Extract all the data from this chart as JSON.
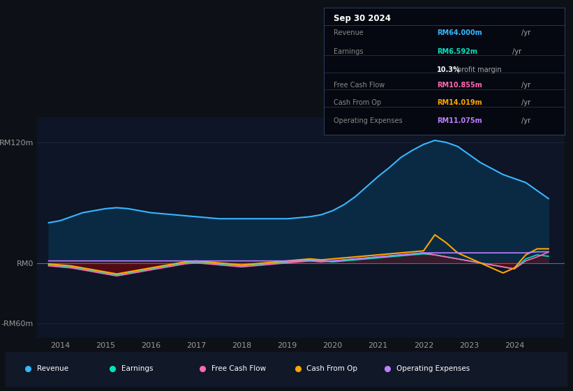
{
  "background_color": "#0d1117",
  "plot_bg_color": "#0d1526",
  "title": "Sep 30 2024",
  "ylim": [
    -75,
    145
  ],
  "ytick_positions": [
    -60,
    0,
    120
  ],
  "ytick_labels": [
    "-RM60m",
    "RM0",
    "RM120m"
  ],
  "xlim": [
    2013.5,
    2025.1
  ],
  "xtick_years": [
    2014,
    2015,
    2016,
    2017,
    2018,
    2019,
    2020,
    2021,
    2022,
    2023,
    2024
  ],
  "revenue_color": "#38b6ff",
  "revenue_fill_color": "#0a2a44",
  "earnings_color": "#00e5c0",
  "earnings_fill_above_color": "#4a1a2a",
  "earnings_fill_below_color": "#5a1010",
  "fcf_color": "#ff69b4",
  "cashfromop_color": "#ffa500",
  "opex_color": "#bf7fff",
  "legend_bg": "#111827",
  "info_bg": "#050810",
  "info_border": "#2a3a5a",
  "revenue_label": "RM64.000m",
  "earnings_label": "RM6.592m",
  "profit_margin": "10.3%",
  "fcf_label": "RM10.855m",
  "cashfromop_label": "RM14.019m",
  "opex_label": "RM11.075m",
  "years": [
    2013.75,
    2014.0,
    2014.25,
    2014.5,
    2014.75,
    2015.0,
    2015.25,
    2015.5,
    2015.75,
    2016.0,
    2016.25,
    2016.5,
    2016.75,
    2017.0,
    2017.25,
    2017.5,
    2017.75,
    2018.0,
    2018.25,
    2018.5,
    2018.75,
    2019.0,
    2019.25,
    2019.5,
    2019.75,
    2020.0,
    2020.25,
    2020.5,
    2020.75,
    2021.0,
    2021.25,
    2021.5,
    2021.75,
    2022.0,
    2022.25,
    2022.5,
    2022.75,
    2023.0,
    2023.25,
    2023.5,
    2023.75,
    2024.0,
    2024.25,
    2024.5,
    2024.75
  ],
  "revenue": [
    40,
    42,
    46,
    50,
    52,
    54,
    55,
    54,
    52,
    50,
    49,
    48,
    47,
    46,
    45,
    44,
    44,
    44,
    44,
    44,
    44,
    44,
    45,
    46,
    48,
    52,
    58,
    66,
    76,
    86,
    95,
    105,
    112,
    118,
    122,
    120,
    116,
    108,
    100,
    94,
    88,
    84,
    80,
    72,
    64
  ],
  "earnings": [
    -2,
    -3,
    -4,
    -6,
    -8,
    -10,
    -12,
    -10,
    -8,
    -6,
    -4,
    -2,
    0,
    1,
    0,
    -1,
    -2,
    -3,
    -2,
    -1,
    0,
    1,
    2,
    3,
    2,
    1,
    2,
    3,
    4,
    5,
    6,
    7,
    8,
    9,
    8,
    6,
    4,
    2,
    0,
    -2,
    -4,
    -6,
    4,
    8,
    6.592
  ],
  "fcf": [
    -3,
    -4,
    -5,
    -7,
    -9,
    -11,
    -13,
    -11,
    -9,
    -7,
    -5,
    -3,
    -1,
    0,
    -1,
    -2,
    -3,
    -4,
    -3,
    -2,
    -1,
    0,
    1,
    2,
    1,
    2,
    3,
    4,
    5,
    6,
    7,
    8,
    9,
    10,
    8,
    6,
    4,
    2,
    0,
    -2,
    -4,
    -6,
    2,
    6,
    10.855
  ],
  "cashfromop": [
    -1,
    -2,
    -3,
    -5,
    -7,
    -9,
    -11,
    -9,
    -7,
    -5,
    -3,
    -1,
    1,
    2,
    1,
    0,
    -1,
    -2,
    -1,
    0,
    1,
    2,
    3,
    4,
    3,
    4,
    5,
    6,
    7,
    8,
    9,
    10,
    11,
    12,
    28,
    20,
    10,
    5,
    0,
    -5,
    -10,
    -5,
    8,
    14,
    14.019
  ],
  "opex": [
    2,
    2,
    2,
    2,
    2,
    2,
    2,
    2,
    2,
    2,
    2,
    2,
    2,
    2,
    2,
    2,
    2,
    2,
    2,
    2,
    2,
    2,
    2,
    2,
    2,
    2,
    3,
    4,
    5,
    6,
    7,
    8,
    9,
    10,
    10,
    10,
    10,
    10,
    10,
    10,
    10,
    10,
    10,
    11,
    11.075
  ]
}
